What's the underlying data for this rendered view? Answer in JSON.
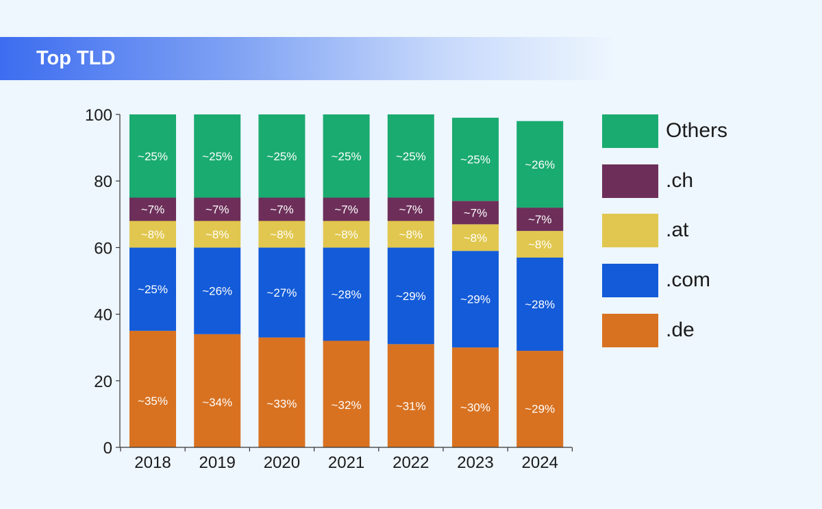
{
  "header": {
    "title": "Top TLD"
  },
  "chart_data": {
    "type": "bar",
    "stacked": true,
    "title": "Top TLD",
    "xlabel": "",
    "ylabel": "",
    "ylim": [
      0,
      100
    ],
    "yticks": [
      0,
      20,
      40,
      60,
      80,
      100
    ],
    "grid": false,
    "legend_position": "right",
    "categories": [
      "2018",
      "2019",
      "2020",
      "2021",
      "2022",
      "2023",
      "2024"
    ],
    "series": [
      {
        "name": ".de",
        "color": "#d87221",
        "values": [
          35,
          34,
          33,
          32,
          31,
          30,
          29
        ],
        "labels": [
          "~35%",
          "~34%",
          "~33%",
          "~32%",
          "~31%",
          "~30%",
          "~29%"
        ]
      },
      {
        "name": ".com",
        "color": "#135bd8",
        "values": [
          25,
          26,
          27,
          28,
          29,
          29,
          28
        ],
        "labels": [
          "~25%",
          "~26%",
          "~27%",
          "~28%",
          "~29%",
          "~29%",
          "~28%"
        ]
      },
      {
        "name": ".at",
        "color": "#e1c74f",
        "values": [
          8,
          8,
          8,
          8,
          8,
          8,
          8
        ],
        "labels": [
          "~8%",
          "~8%",
          "~8%",
          "~8%",
          "~8%",
          "~8%",
          "~8%"
        ]
      },
      {
        "name": ".ch",
        "color": "#6d2f5a",
        "values": [
          7,
          7,
          7,
          7,
          7,
          7,
          7
        ],
        "labels": [
          "~7%",
          "~7%",
          "~7%",
          "~7%",
          "~7%",
          "~7%",
          "~7%"
        ]
      },
      {
        "name": "Others",
        "color": "#1aab70",
        "values": [
          25,
          25,
          25,
          25,
          25,
          25,
          26
        ],
        "labels": [
          "~25%",
          "~25%",
          "~25%",
          "~25%",
          "~25%",
          "~25%",
          "~26%"
        ]
      }
    ]
  }
}
